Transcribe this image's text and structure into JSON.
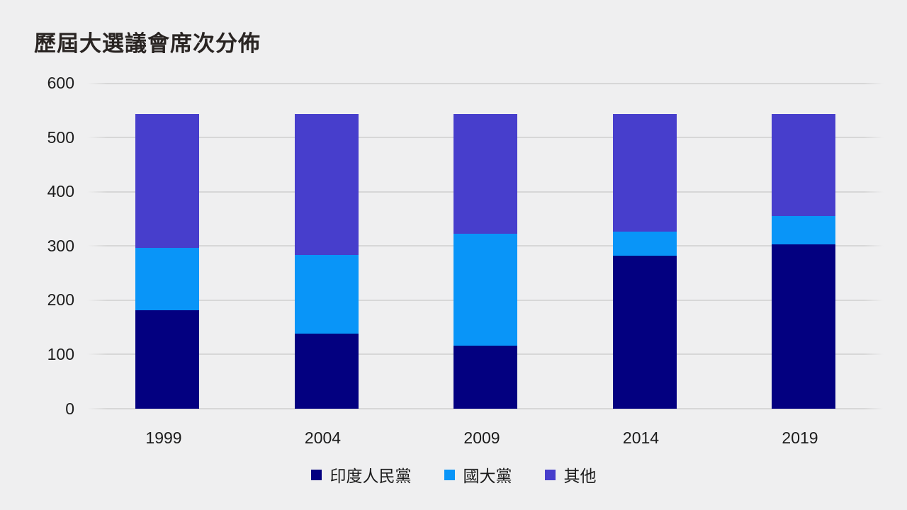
{
  "title": "歷屆大選議會席次分佈",
  "colors": {
    "background": "#efeff0",
    "gridline": "#d7d7d7",
    "title_text": "#292422",
    "axis_text": "#1c1c1c",
    "series_bjp": "#030080",
    "series_inc": "#0995f8",
    "series_others": "#473ecc"
  },
  "chart_data": {
    "type": "bar",
    "stacked": true,
    "title": "歷屆大選議會席次分佈",
    "categories": [
      "1999",
      "2004",
      "2009",
      "2014",
      "2019"
    ],
    "series": [
      {
        "name": "印度人民黨",
        "color": "#030080",
        "values": [
          182,
          138,
          116,
          282,
          303
        ]
      },
      {
        "name": "國大黨",
        "color": "#0995f8",
        "values": [
          114,
          145,
          206,
          44,
          52
        ]
      },
      {
        "name": "其他",
        "color": "#473ecc",
        "values": [
          247,
          260,
          221,
          217,
          188
        ]
      }
    ],
    "totals_per_bar": [
      543,
      543,
      543,
      543,
      543
    ],
    "xlabel": "",
    "ylabel": "",
    "ylim": [
      0,
      600
    ],
    "yticks": [
      0,
      100,
      200,
      300,
      400,
      500,
      600
    ],
    "grid": true,
    "legend_position": "bottom"
  },
  "legend": {
    "items": [
      {
        "label": "印度人民黨"
      },
      {
        "label": "國大黨"
      },
      {
        "label": "其他"
      }
    ]
  }
}
